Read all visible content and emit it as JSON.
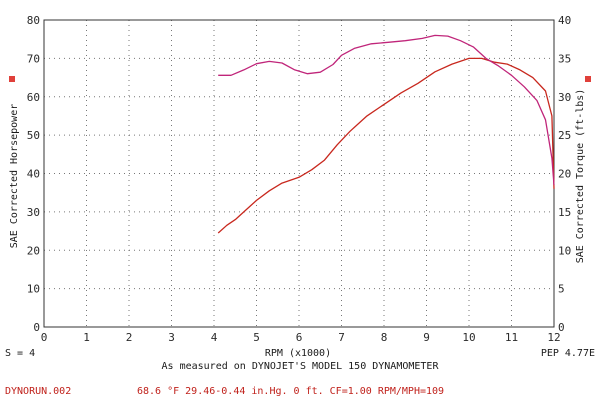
{
  "chart_data": {
    "type": "line",
    "xlabel": "RPM (x1000)",
    "xlim": [
      0,
      12
    ],
    "x_ticks": [
      "0",
      "1",
      "2",
      "3",
      "4",
      "5",
      "6",
      "7",
      "8",
      "9",
      "10",
      "11",
      "12"
    ],
    "y_left": {
      "label": "SAE Corrected Horsepower",
      "lim": [
        0,
        80
      ],
      "ticks": [
        "0",
        "10",
        "20",
        "30",
        "40",
        "50",
        "60",
        "70",
        "80"
      ]
    },
    "y_right": {
      "label": "SAE Corrected Torque (ft-lbs)",
      "lim": [
        0,
        40
      ],
      "ticks": [
        "0",
        "5",
        "10",
        "15",
        "20",
        "25",
        "30",
        "35",
        "40"
      ]
    },
    "grid": true,
    "series": [
      {
        "name": "SAE Corrected Horsepower",
        "axis": "left",
        "color": "#c8281e",
        "x": [
          4.1,
          4.3,
          4.5,
          4.7,
          5.0,
          5.3,
          5.6,
          6.0,
          6.3,
          6.6,
          6.9,
          7.2,
          7.6,
          8.0,
          8.4,
          8.8,
          9.2,
          9.6,
          10.0,
          10.3,
          10.6,
          10.9,
          11.2,
          11.5,
          11.8,
          11.95,
          12.0
        ],
        "y": [
          24.5,
          26.5,
          28.0,
          30.0,
          33.0,
          35.5,
          37.5,
          39.0,
          41.0,
          43.5,
          47.5,
          51.0,
          55.0,
          58.0,
          61.0,
          63.5,
          66.5,
          68.5,
          70.0,
          70.0,
          69.0,
          68.5,
          67.0,
          65.0,
          61.5,
          55.0,
          36.0
        ]
      },
      {
        "name": "SAE Corrected Torque (ft-lbs)",
        "axis": "right",
        "color": "#c0257a",
        "x": [
          4.1,
          4.4,
          4.7,
          5.0,
          5.3,
          5.6,
          5.9,
          6.2,
          6.5,
          6.8,
          7.0,
          7.3,
          7.7,
          8.1,
          8.5,
          8.9,
          9.2,
          9.5,
          9.8,
          10.1,
          10.4,
          10.7,
          11.0,
          11.3,
          11.6,
          11.8,
          11.95,
          12.0
        ],
        "y": [
          32.8,
          32.8,
          33.5,
          34.3,
          34.6,
          34.4,
          33.5,
          33.0,
          33.2,
          34.2,
          35.4,
          36.3,
          36.9,
          37.1,
          37.3,
          37.6,
          38.0,
          37.9,
          37.3,
          36.5,
          35.0,
          34.0,
          32.8,
          31.3,
          29.5,
          27.0,
          22.0,
          18.5
        ]
      }
    ]
  },
  "markers": {
    "left_color": "#e0403a",
    "right_color": "#e0403a"
  },
  "footer": {
    "smoothing": "S = 4",
    "pep": "PEP 4.77E",
    "measured": "As measured on DYNOJET'S MODEL 150 DYNAMOMETER",
    "run_file": "DYNORUN.002",
    "conditions": "68.6 °F   29.46-0.44 in.Hg.   0 ft.   CF=1.00   RPM/MPH=109"
  }
}
